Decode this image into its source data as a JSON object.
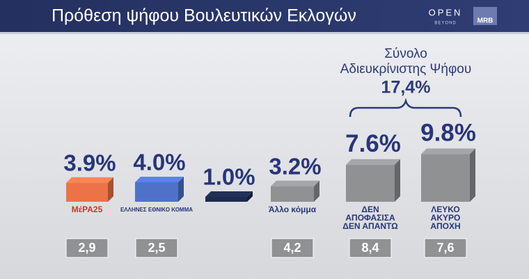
{
  "chart_data": {
    "type": "bar",
    "title": "Πρόθεση ψήφου Βουλευτικών Εκλογών",
    "brand": {
      "open": "OPEN",
      "beyond": "BEYOND",
      "mrb": "MRB"
    },
    "categories": [
      "MέPA25",
      "ΕΛΛΗΝΕΣ ΕΘΝΙΚΟ ΚΟΜΜΑ",
      null,
      "Άλλο κόμμα",
      "ΔΕΝ ΑΠΟΦΑΣΙΣΑ ΔΕΝ ΑΠΑΝΤΩ",
      "ΛΕΥΚΟ ΑΚΥΡΟ ΑΠΟΧΗ"
    ],
    "values": [
      3.9,
      4.0,
      1.0,
      3.2,
      7.6,
      9.8
    ],
    "value_labels": [
      "3.9%",
      "4.0%",
      "1.0%",
      "3.2%",
      "7.6%",
      "9.8%"
    ],
    "colors": [
      "#ec7348",
      "#4f72c8",
      "#1e2a4c",
      "#8f9193",
      "#8f9193",
      "#8f9193"
    ],
    "previous_values": [
      2.9,
      2.5,
      null,
      4.2,
      8.4,
      7.6
    ],
    "previous_labels": [
      "2,9",
      "2,5",
      null,
      "4,2",
      "8,4",
      "7,6"
    ],
    "annotation": {
      "text": [
        "Σύνολο",
        "Αδιευκρίνιστης Ψήφου"
      ],
      "value": 17.4,
      "value_label": "17,4%"
    }
  }
}
